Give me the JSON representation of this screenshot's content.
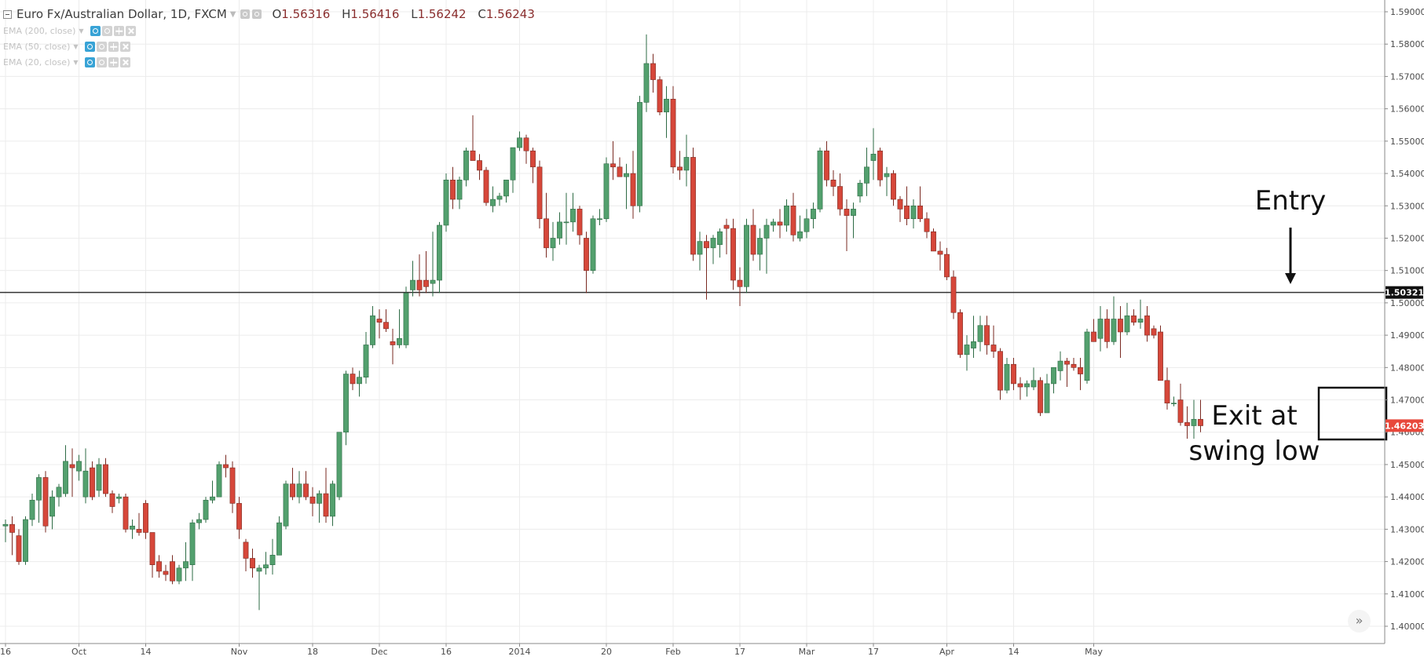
{
  "legend": {
    "symbol": "Euro Fx/Australian Dollar, 1D, FXCM",
    "open_label": "O",
    "open": "1.56316",
    "high_label": "H",
    "high": "1.56416",
    "low_label": "L",
    "low": "1.56242",
    "close_label": "C",
    "close": "1.56243"
  },
  "indicators": [
    {
      "label": "EMA (200, close)"
    },
    {
      "label": "EMA (50, close)"
    },
    {
      "label": "EMA (20, close)"
    }
  ],
  "annotations": {
    "entry": "Entry",
    "exit_line1": "Exit at",
    "exit_line2": "swing low"
  },
  "colors": {
    "up": "#53a06e",
    "up_wick": "#2e6b45",
    "down": "#d6473a",
    "down_wick": "#7a2a22",
    "grid": "#ececec",
    "axis_text": "#4a4a4a",
    "level_line": "#333333",
    "price_tag_red": "#e8483b"
  },
  "chart_data": {
    "type": "candlestick",
    "title": "Euro Fx/Australian Dollar, 1D, FXCM",
    "ylim": [
      1.395,
      1.593
    ],
    "yticks": [
      "1.59000",
      "1.58000",
      "1.57000",
      "1.56000",
      "1.55000",
      "1.54000",
      "1.53000",
      "1.52000",
      "1.51000",
      "1.50000",
      "1.49000",
      "1.48000",
      "1.47000",
      "1.46000",
      "1.45000",
      "1.44000",
      "1.43000",
      "1.42000",
      "1.41000",
      "1.40000"
    ],
    "xticks": [
      {
        "label": "16",
        "bar": 0
      },
      {
        "label": "Oct",
        "bar": 11
      },
      {
        "label": "14",
        "bar": 21
      },
      {
        "label": "Nov",
        "bar": 35
      },
      {
        "label": "18",
        "bar": 46
      },
      {
        "label": "Dec",
        "bar": 56
      },
      {
        "label": "16",
        "bar": 66
      },
      {
        "label": "2014",
        "bar": 77
      },
      {
        "label": "20",
        "bar": 90
      },
      {
        "label": "Feb",
        "bar": 100
      },
      {
        "label": "17",
        "bar": 110
      },
      {
        "label": "Mar",
        "bar": 120
      },
      {
        "label": "17",
        "bar": 130
      },
      {
        "label": "Apr",
        "bar": 141
      },
      {
        "label": "14",
        "bar": 151
      },
      {
        "label": "May",
        "bar": 163
      }
    ],
    "level": {
      "price": 1.50321,
      "label": "1.50321"
    },
    "last_price": {
      "price": 1.46203,
      "label": "1.46203"
    },
    "grid": true,
    "candles": [
      [
        1.431,
        1.433,
        1.426,
        1.4315
      ],
      [
        1.4315,
        1.434,
        1.422,
        1.429
      ],
      [
        1.428,
        1.43,
        1.419,
        1.42
      ],
      [
        1.42,
        1.434,
        1.419,
        1.433
      ],
      [
        1.433,
        1.441,
        1.431,
        1.439
      ],
      [
        1.439,
        1.447,
        1.432,
        1.446
      ],
      [
        1.446,
        1.448,
        1.429,
        1.431
      ],
      [
        1.434,
        1.442,
        1.43,
        1.44
      ],
      [
        1.44,
        1.444,
        1.437,
        1.443
      ],
      [
        1.441,
        1.456,
        1.44,
        1.451
      ],
      [
        1.45,
        1.455,
        1.44,
        1.449
      ],
      [
        1.448,
        1.453,
        1.445,
        1.451
      ],
      [
        1.44,
        1.455,
        1.438,
        1.448
      ],
      [
        1.449,
        1.451,
        1.439,
        1.44
      ],
      [
        1.442,
        1.452,
        1.44,
        1.45
      ],
      [
        1.45,
        1.452,
        1.44,
        1.441
      ],
      [
        1.441,
        1.442,
        1.435,
        1.437
      ],
      [
        1.4395,
        1.441,
        1.438,
        1.44
      ],
      [
        1.44,
        1.441,
        1.429,
        1.43
      ],
      [
        1.43,
        1.433,
        1.427,
        1.431
      ],
      [
        1.43,
        1.435,
        1.428,
        1.429
      ],
      [
        1.438,
        1.439,
        1.427,
        1.429
      ],
      [
        1.429,
        1.429,
        1.415,
        1.419
      ],
      [
        1.42,
        1.422,
        1.415,
        1.417
      ],
      [
        1.417,
        1.419,
        1.414,
        1.416
      ],
      [
        1.42,
        1.422,
        1.413,
        1.414
      ],
      [
        1.414,
        1.419,
        1.413,
        1.418
      ],
      [
        1.418,
        1.426,
        1.414,
        1.42
      ],
      [
        1.419,
        1.433,
        1.414,
        1.432
      ],
      [
        1.432,
        1.435,
        1.43,
        1.433
      ],
      [
        1.433,
        1.44,
        1.432,
        1.439
      ],
      [
        1.439,
        1.445,
        1.438,
        1.44
      ],
      [
        1.44,
        1.451,
        1.44,
        1.45
      ],
      [
        1.45,
        1.453,
        1.446,
        1.449
      ],
      [
        1.449,
        1.451,
        1.435,
        1.438
      ],
      [
        1.438,
        1.44,
        1.427,
        1.43
      ],
      [
        1.426,
        1.427,
        1.417,
        1.421
      ],
      [
        1.421,
        1.424,
        1.415,
        1.418
      ],
      [
        1.417,
        1.419,
        1.405,
        1.418
      ],
      [
        1.418,
        1.423,
        1.416,
        1.419
      ],
      [
        1.419,
        1.427,
        1.416,
        1.422
      ],
      [
        1.422,
        1.434,
        1.422,
        1.432
      ],
      [
        1.431,
        1.445,
        1.43,
        1.444
      ],
      [
        1.444,
        1.449,
        1.439,
        1.44
      ],
      [
        1.44,
        1.448,
        1.438,
        1.444
      ],
      [
        1.444,
        1.448,
        1.439,
        1.44
      ],
      [
        1.44,
        1.443,
        1.434,
        1.438
      ],
      [
        1.438,
        1.442,
        1.432,
        1.441
      ],
      [
        1.441,
        1.449,
        1.432,
        1.434
      ],
      [
        1.434,
        1.445,
        1.431,
        1.444
      ],
      [
        1.44,
        1.46,
        1.439,
        1.46
      ],
      [
        1.46,
        1.479,
        1.456,
        1.478
      ],
      [
        1.478,
        1.48,
        1.473,
        1.475
      ],
      [
        1.475,
        1.479,
        1.471,
        1.477
      ],
      [
        1.477,
        1.491,
        1.475,
        1.487
      ],
      [
        1.487,
        1.499,
        1.486,
        1.496
      ],
      [
        1.495,
        1.498,
        1.489,
        1.494
      ],
      [
        1.494,
        1.498,
        1.491,
        1.492
      ],
      [
        1.488,
        1.492,
        1.481,
        1.487
      ],
      [
        1.487,
        1.498,
        1.486,
        1.489
      ],
      [
        1.487,
        1.505,
        1.486,
        1.503
      ],
      [
        1.504,
        1.513,
        1.502,
        1.507
      ],
      [
        1.507,
        1.515,
        1.502,
        1.504
      ],
      [
        1.507,
        1.516,
        1.503,
        1.505
      ],
      [
        1.506,
        1.522,
        1.502,
        1.507
      ],
      [
        1.507,
        1.525,
        1.503,
        1.524
      ],
      [
        1.524,
        1.54,
        1.522,
        1.538
      ],
      [
        1.538,
        1.542,
        1.529,
        1.532
      ],
      [
        1.532,
        1.539,
        1.529,
        1.538
      ],
      [
        1.538,
        1.548,
        1.536,
        1.547
      ],
      [
        1.547,
        1.558,
        1.544,
        1.544
      ],
      [
        1.544,
        1.546,
        1.538,
        1.541
      ],
      [
        1.541,
        1.542,
        1.53,
        1.531
      ],
      [
        1.53,
        1.536,
        1.528,
        1.532
      ],
      [
        1.532,
        1.534,
        1.53,
        1.533
      ],
      [
        1.533,
        1.538,
        1.531,
        1.538
      ],
      [
        1.538,
        1.548,
        1.534,
        1.548
      ],
      [
        1.548,
        1.553,
        1.547,
        1.551
      ],
      [
        1.551,
        1.552,
        1.543,
        1.547
      ],
      [
        1.547,
        1.548,
        1.537,
        1.542
      ],
      [
        1.542,
        1.544,
        1.523,
        1.526
      ],
      [
        1.526,
        1.534,
        1.514,
        1.517
      ],
      [
        1.517,
        1.525,
        1.513,
        1.52
      ],
      [
        1.52,
        1.528,
        1.518,
        1.525
      ],
      [
        1.525,
        1.534,
        1.518,
        1.525
      ],
      [
        1.525,
        1.534,
        1.522,
        1.529
      ],
      [
        1.529,
        1.53,
        1.518,
        1.521
      ],
      [
        1.52,
        1.522,
        1.503,
        1.51
      ],
      [
        1.51,
        1.527,
        1.509,
        1.526
      ],
      [
        1.526,
        1.529,
        1.524,
        1.526
      ],
      [
        1.526,
        1.545,
        1.525,
        1.543
      ],
      [
        1.543,
        1.55,
        1.538,
        1.542
      ],
      [
        1.542,
        1.545,
        1.539,
        1.539
      ],
      [
        1.539,
        1.543,
        1.529,
        1.54
      ],
      [
        1.54,
        1.547,
        1.526,
        1.53
      ],
      [
        1.53,
        1.564,
        1.528,
        1.562
      ],
      [
        1.562,
        1.583,
        1.559,
        1.574
      ],
      [
        1.574,
        1.577,
        1.565,
        1.569
      ],
      [
        1.569,
        1.57,
        1.558,
        1.559
      ],
      [
        1.559,
        1.567,
        1.551,
        1.563
      ],
      [
        1.563,
        1.567,
        1.54,
        1.542
      ],
      [
        1.542,
        1.547,
        1.538,
        1.541
      ],
      [
        1.541,
        1.552,
        1.536,
        1.545
      ],
      [
        1.545,
        1.548,
        1.513,
        1.515
      ],
      [
        1.515,
        1.522,
        1.51,
        1.519
      ],
      [
        1.519,
        1.521,
        1.501,
        1.517
      ],
      [
        1.517,
        1.521,
        1.512,
        1.52
      ],
      [
        1.518,
        1.523,
        1.514,
        1.522
      ],
      [
        1.524,
        1.526,
        1.515,
        1.523
      ],
      [
        1.523,
        1.526,
        1.504,
        1.507
      ],
      [
        1.507,
        1.511,
        1.499,
        1.505
      ],
      [
        1.505,
        1.526,
        1.503,
        1.524
      ],
      [
        1.524,
        1.529,
        1.513,
        1.515
      ],
      [
        1.515,
        1.523,
        1.51,
        1.52
      ],
      [
        1.52,
        1.526,
        1.509,
        1.524
      ],
      [
        1.524,
        1.526,
        1.522,
        1.525
      ],
      [
        1.525,
        1.529,
        1.52,
        1.524
      ],
      [
        1.524,
        1.532,
        1.522,
        1.53
      ],
      [
        1.53,
        1.534,
        1.519,
        1.521
      ],
      [
        1.52,
        1.527,
        1.519,
        1.522
      ],
      [
        1.522,
        1.529,
        1.52,
        1.526
      ],
      [
        1.526,
        1.531,
        1.523,
        1.529
      ],
      [
        1.529,
        1.548,
        1.528,
        1.547
      ],
      [
        1.547,
        1.55,
        1.536,
        1.538
      ],
      [
        1.538,
        1.541,
        1.533,
        1.536
      ],
      [
        1.536,
        1.54,
        1.527,
        1.529
      ],
      [
        1.529,
        1.532,
        1.516,
        1.527
      ],
      [
        1.527,
        1.531,
        1.52,
        1.529
      ],
      [
        1.533,
        1.538,
        1.531,
        1.537
      ],
      [
        1.537,
        1.548,
        1.533,
        1.542
      ],
      [
        1.544,
        1.554,
        1.538,
        1.546
      ],
      [
        1.547,
        1.548,
        1.536,
        1.538
      ],
      [
        1.539,
        1.542,
        1.533,
        1.54
      ],
      [
        1.54,
        1.541,
        1.53,
        1.532
      ],
      [
        1.532,
        1.533,
        1.525,
        1.529
      ],
      [
        1.53,
        1.536,
        1.524,
        1.526
      ],
      [
        1.526,
        1.532,
        1.523,
        1.53
      ],
      [
        1.53,
        1.536,
        1.525,
        1.526
      ],
      [
        1.526,
        1.528,
        1.52,
        1.522
      ],
      [
        1.522,
        1.523,
        1.516,
        1.516
      ],
      [
        1.516,
        1.519,
        1.51,
        1.515
      ],
      [
        1.515,
        1.517,
        1.507,
        1.508
      ],
      [
        1.508,
        1.51,
        1.495,
        1.497
      ],
      [
        1.497,
        1.498,
        1.483,
        1.484
      ],
      [
        1.484,
        1.49,
        1.479,
        1.487
      ],
      [
        1.486,
        1.496,
        1.483,
        1.488
      ],
      [
        1.488,
        1.496,
        1.485,
        1.493
      ],
      [
        1.493,
        1.496,
        1.484,
        1.487
      ],
      [
        1.487,
        1.493,
        1.483,
        1.485
      ],
      [
        1.485,
        1.486,
        1.47,
        1.473
      ],
      [
        1.473,
        1.483,
        1.472,
        1.481
      ],
      [
        1.481,
        1.483,
        1.473,
        1.475
      ],
      [
        1.475,
        1.477,
        1.47,
        1.474
      ],
      [
        1.474,
        1.476,
        1.471,
        1.475
      ],
      [
        1.474,
        1.48,
        1.473,
        1.476
      ],
      [
        1.476,
        1.477,
        1.465,
        1.466
      ],
      [
        1.466,
        1.478,
        1.466,
        1.475
      ],
      [
        1.475,
        1.479,
        1.472,
        1.48
      ],
      [
        1.479,
        1.485,
        1.476,
        1.482
      ],
      [
        1.482,
        1.483,
        1.474,
        1.481
      ],
      [
        1.481,
        1.483,
        1.479,
        1.48
      ],
      [
        1.48,
        1.483,
        1.473,
        1.478
      ],
      [
        1.476,
        1.492,
        1.475,
        1.491
      ],
      [
        1.491,
        1.495,
        1.488,
        1.488
      ],
      [
        1.489,
        1.499,
        1.485,
        1.495
      ],
      [
        1.495,
        1.498,
        1.486,
        1.488
      ],
      [
        1.488,
        1.502,
        1.487,
        1.495
      ],
      [
        1.495,
        1.499,
        1.483,
        1.491
      ],
      [
        1.491,
        1.5,
        1.49,
        1.496
      ],
      [
        1.496,
        1.498,
        1.493,
        1.494
      ],
      [
        1.494,
        1.501,
        1.492,
        1.495
      ],
      [
        1.496,
        1.499,
        1.488,
        1.49
      ],
      [
        1.492,
        1.493,
        1.489,
        1.49
      ],
      [
        1.491,
        1.493,
        1.476,
        1.476
      ],
      [
        1.476,
        1.48,
        1.467,
        1.469
      ],
      [
        1.469,
        1.471,
        1.468,
        1.469
      ],
      [
        1.47,
        1.475,
        1.462,
        1.463
      ],
      [
        1.463,
        1.468,
        1.458,
        1.462
      ],
      [
        1.462,
        1.47,
        1.458,
        1.464
      ],
      [
        1.464,
        1.47,
        1.46,
        1.462
      ]
    ]
  }
}
